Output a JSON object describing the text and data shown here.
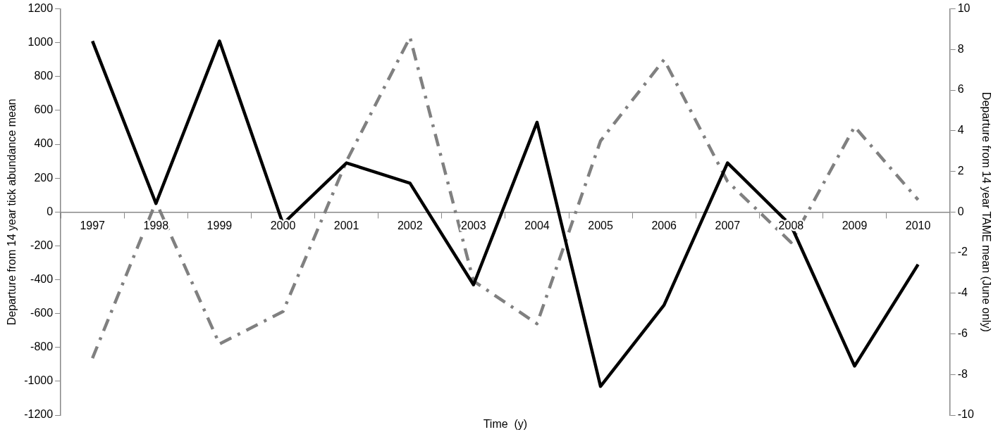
{
  "chart_data": {
    "type": "line",
    "xlabel": "Time  (y)",
    "ylabel": "Departure from 14 year tick abundance mean",
    "y2label": "Departure from 14 year TAME mean (June only)",
    "categories": [
      "1997",
      "1998",
      "1999",
      "2000",
      "2001",
      "2002",
      "2003",
      "2004",
      "2005",
      "2006",
      "2007",
      "2008",
      "2009",
      "2010"
    ],
    "series": [
      {
        "color": "#000000",
        "line_style": "solid",
        "values": [
          1010,
          50,
          1010,
          -70,
          290,
          170,
          -430,
          530,
          -1030,
          -550,
          290,
          -80,
          -910,
          -310
        ]
      },
      {
        "color": "#808080",
        "line_style": "dashdot",
        "axis": "y2",
        "values": [
          -7.2,
          0.5,
          -6.5,
          -4.9,
          2.5,
          8.6,
          -3.4,
          -5.5,
          3.5,
          7.5,
          1.5,
          -1.5,
          4.2,
          0.6
        ]
      }
    ],
    "ylim": [
      -1200,
      1200
    ],
    "yticks": [
      -1200,
      -1000,
      -800,
      -600,
      -400,
      -200,
      0,
      200,
      400,
      600,
      800,
      1000,
      1200
    ],
    "y2lim": [
      -10,
      10
    ],
    "y2ticks": [
      -10,
      -8,
      -6,
      -4,
      -2,
      0,
      2,
      4,
      6,
      8,
      10
    ],
    "grid": false,
    "legend": false,
    "marker": "none"
  }
}
